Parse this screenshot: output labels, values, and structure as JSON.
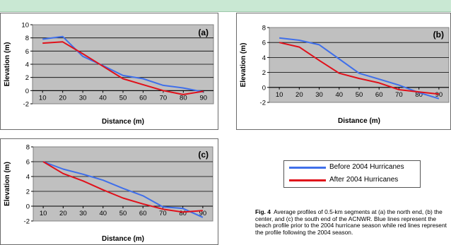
{
  "colors": {
    "before": "#3f6fea",
    "after": "#e0101a",
    "plot_bg": "#c0c0c0"
  },
  "legend": {
    "before_label": "Before 2004 Hurricanes",
    "after_label": "After 2004 Hurricanes"
  },
  "caption": {
    "lead": "Fig. 4",
    "body": "Average profiles of 0.5-km segments at (a) the north end, (b) the center, and (c) the south end of the ACNWR. Blue lines represent the beach profile prior to the 2004 hurricane season while red lines represent the profile following the 2004 season."
  },
  "chart_data": [
    {
      "type": "line",
      "panel": "(a)",
      "title": "",
      "xlabel": "Distance (m)",
      "ylabel": "Elevation (m)",
      "xticks": [
        10,
        20,
        30,
        40,
        50,
        60,
        70,
        80,
        90
      ],
      "yticks": [
        -2,
        0,
        2,
        4,
        6,
        8,
        10
      ],
      "xlim": [
        5,
        95
      ],
      "ylim": [
        -2,
        10
      ],
      "grid": true,
      "series": [
        {
          "role": "before",
          "x": [
            10,
            20,
            30,
            40,
            50,
            60,
            70,
            80,
            90
          ],
          "y": [
            7.8,
            8.2,
            5.2,
            3.8,
            2.3,
            1.8,
            0.8,
            0.4,
            -0.2
          ]
        },
        {
          "role": "after",
          "x": [
            10,
            20,
            30,
            40,
            50,
            60,
            70,
            80,
            90
          ],
          "y": [
            7.2,
            7.4,
            5.6,
            3.7,
            1.8,
            0.9,
            0.0,
            -0.6,
            -0.1
          ]
        }
      ]
    },
    {
      "type": "line",
      "panel": "(b)",
      "title": "",
      "xlabel": "Distance (m)",
      "ylabel": "Elevation (m)",
      "xticks": [
        10,
        20,
        30,
        40,
        50,
        60,
        70,
        80,
        90
      ],
      "yticks": [
        -2,
        0,
        2,
        4,
        6,
        8
      ],
      "xlim": [
        5,
        95
      ],
      "ylim": [
        -2,
        8
      ],
      "grid": true,
      "series": [
        {
          "role": "before",
          "x": [
            10,
            20,
            30,
            40,
            50,
            60,
            70,
            80,
            90
          ],
          "y": [
            6.6,
            6.3,
            5.7,
            3.8,
            1.9,
            1.1,
            0.3,
            -0.7,
            -1.5
          ]
        },
        {
          "role": "after",
          "x": [
            10,
            20,
            30,
            40,
            50,
            60,
            70,
            80,
            90
          ],
          "y": [
            6.0,
            5.4,
            3.6,
            1.9,
            1.2,
            0.6,
            -0.3,
            -0.6,
            -0.9
          ]
        }
      ]
    },
    {
      "type": "line",
      "panel": "(c)",
      "title": "",
      "xlabel": "Distance (m)",
      "ylabel": "Elevation (m)",
      "xticks": [
        10,
        20,
        30,
        40,
        50,
        60,
        70,
        80,
        90
      ],
      "yticks": [
        -2,
        0,
        2,
        4,
        6,
        8
      ],
      "xlim": [
        5,
        95
      ],
      "ylim": [
        -2,
        8
      ],
      "grid": true,
      "series": [
        {
          "role": "before",
          "x": [
            10,
            20,
            30,
            40,
            50,
            60,
            70,
            80,
            90
          ],
          "y": [
            6.0,
            5.0,
            4.3,
            3.5,
            2.4,
            1.4,
            -0.1,
            -0.3,
            -1.5
          ]
        },
        {
          "role": "after",
          "x": [
            10,
            20,
            30,
            40,
            50,
            60,
            70,
            80,
            90
          ],
          "y": [
            6.0,
            4.4,
            3.4,
            2.2,
            1.1,
            0.3,
            -0.4,
            -0.8,
            -0.6
          ]
        }
      ]
    }
  ]
}
